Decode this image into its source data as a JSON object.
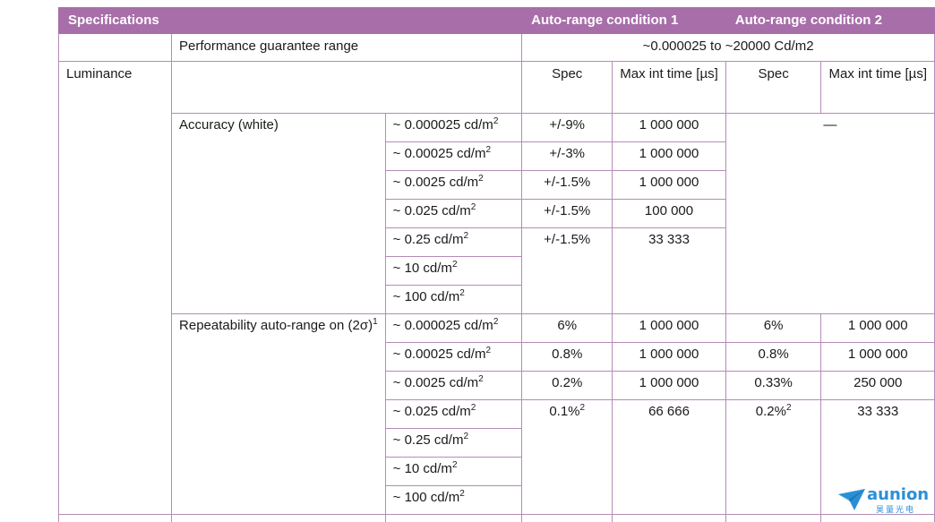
{
  "header": {
    "specifications": "Specifications",
    "condition1": "Auto-range condition 1",
    "condition2": "Auto-range condition 2"
  },
  "performance": {
    "label": "Performance guarantee range",
    "value": "~0.000025 to ~20000 Cd/m2"
  },
  "luminance": {
    "label": "Luminance",
    "col_spec": "Spec",
    "col_max_int": "Max int time [µs]"
  },
  "accuracy": {
    "label": "Accuracy (white)",
    "dash": "—",
    "rows": [
      {
        "level": "~ 0.000025 cd/m",
        "spec1": "+/-9%",
        "max1": "1 000 000"
      },
      {
        "level": "~ 0.00025 cd/m",
        "spec1": "+/-3%",
        "max1": "1 000 000"
      },
      {
        "level": "~ 0.0025 cd/m",
        "spec1": "+/-1.5%",
        "max1": "1 000 000"
      },
      {
        "level": "~ 0.025 cd/m",
        "spec1": "+/-1.5%",
        "max1": "100 000"
      },
      {
        "level": "~ 0.25 cd/m",
        "spec1": "+/-1.5%",
        "max1": "33 333"
      },
      {
        "level": "~ 10 cd/m"
      },
      {
        "level": "~ 100 cd/m"
      }
    ]
  },
  "repeatability": {
    "label": "Repeatability auto-range on (2σ)",
    "footnote": "1",
    "rows": [
      {
        "level": "~ 0.000025 cd/m",
        "spec1": "6%",
        "max1": "1 000 000",
        "spec2": "6%",
        "max2": "1 000 000"
      },
      {
        "level": "~ 0.00025 cd/m",
        "spec1": "0.8%",
        "max1": "1 000 000",
        "spec2": "0.8%",
        "max2": "1 000 000"
      },
      {
        "level": "~ 0.0025 cd/m",
        "spec1": "0.2%",
        "max1": "1 000 000",
        "spec2": "0.33%",
        "max2": "250 000"
      },
      {
        "level": "~ 0.025 cd/m",
        "spec1": "0.1%",
        "spec1_note": "2",
        "max1": "66 666",
        "spec2": "0.2%",
        "spec2_note": "2",
        "max2": "33 333"
      },
      {
        "level": "~ 0.25 cd/m"
      },
      {
        "level": "~ 10 cd/m"
      },
      {
        "level": "~ 100 cd/m"
      }
    ]
  },
  "superscript": "2",
  "logo": {
    "text": "aunion",
    "subtext": "昊量光电",
    "icon": "paper-plane-logo-icon",
    "color": "#2b8fd6"
  },
  "colors": {
    "header_bg": "#a86ea9",
    "border": "#b58bb8"
  }
}
